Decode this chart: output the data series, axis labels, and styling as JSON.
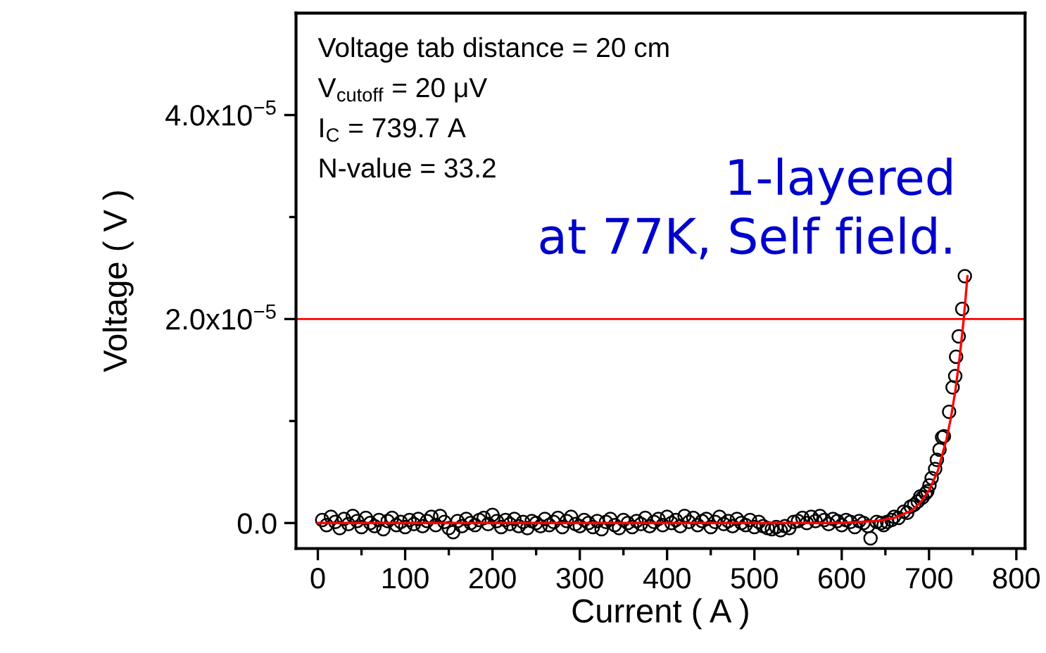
{
  "chart_data": {
    "type": "scatter",
    "xlabel": "Current ( A )",
    "ylabel": "Voltage ( V )",
    "xlim": [
      -25,
      810
    ],
    "ylim": [
      -2.5e-06,
      5e-05
    ],
    "xticks": [
      0,
      {
        "value": 50,
        "label": null
      },
      100,
      {
        "value": 150,
        "label": null
      },
      200,
      {
        "value": 250,
        "label": null
      },
      300,
      {
        "value": 350,
        "label": null
      },
      400,
      {
        "value": 450,
        "label": null
      },
      500,
      {
        "value": 550,
        "label": null
      },
      600,
      {
        "value": 650,
        "label": null
      },
      700,
      {
        "value": 750,
        "label": null
      },
      800
    ],
    "yticks": [
      {
        "value": 0,
        "label": "0.0"
      },
      {
        "value": 1e-05,
        "label": null
      },
      {
        "value": 2e-05,
        "label": "2.0x10$^{−5}$"
      },
      {
        "value": 3e-05,
        "label": null
      },
      {
        "value": 4e-05,
        "label": "4.0x10$^{−5}$"
      }
    ],
    "grid": false,
    "legend": false,
    "ref_lines": [
      {
        "axis": "y",
        "value": 2e-05,
        "color": "#ff0000"
      }
    ],
    "annotations": [
      "Voltage tab distance = 20 cm",
      "V$_{cutoff}$ = 20 μV",
      "I$_{C}$ = 739.7 A",
      "N-value = 33.2",
      "1-layered",
      "at 77K, Self field."
    ],
    "series": [
      {
        "color": "#000000",
        "marker": "circle",
        "x": [
          5,
          10,
          15,
          20,
          25,
          30,
          35,
          40,
          45,
          50,
          55,
          60,
          65,
          70,
          75,
          80,
          85,
          90,
          95,
          100,
          105,
          110,
          115,
          120,
          125,
          130,
          135,
          140,
          145,
          150,
          155,
          160,
          165,
          170,
          175,
          180,
          185,
          190,
          195,
          200,
          205,
          210,
          215,
          220,
          225,
          230,
          235,
          240,
          245,
          250,
          255,
          260,
          265,
          270,
          275,
          280,
          285,
          290,
          295,
          300,
          305,
          310,
          315,
          320,
          325,
          330,
          335,
          340,
          345,
          350,
          355,
          360,
          365,
          370,
          375,
          380,
          385,
          390,
          395,
          400,
          405,
          410,
          415,
          420,
          425,
          430,
          435,
          440,
          445,
          450,
          455,
          460,
          465,
          470,
          475,
          480,
          485,
          490,
          495,
          500,
          505,
          510,
          515,
          520,
          525,
          530,
          535,
          540,
          545,
          550,
          555,
          560,
          565,
          570,
          575,
          580,
          585,
          590,
          595,
          600,
          605,
          610,
          615,
          620,
          625,
          630,
          633,
          640,
          645,
          648,
          652,
          657,
          660,
          665,
          671,
          675,
          679,
          683,
          687,
          690,
          692.5,
          696,
          698,
          700.5,
          703,
          707,
          709,
          712,
          715,
          717,
          723,
          727,
          730,
          731,
          734,
          738,
          741
        ],
        "values": [
          3e-07,
          -2e-07,
          6e-07,
          1e-07,
          -5e-07,
          4e-07,
          -1e-07,
          7e-07,
          2e-07,
          -4e-07,
          5e-07,
          0,
          -3e-07,
          3e-07,
          -6e-07,
          2e-07,
          5e-07,
          -2e-07,
          1e-07,
          -4e-07,
          3e-07,
          -1e-07,
          4e-07,
          -3e-07,
          2e-07,
          6e-07,
          -2e-07,
          7e-07,
          1e-07,
          -5e-07,
          -9e-07,
          2e-07,
          -3e-07,
          4e-07,
          0,
          -2e-07,
          3e-07,
          5e-07,
          -1e-07,
          8e-07,
          2e-07,
          -4e-07,
          3e-07,
          -1e-07,
          4e-07,
          -3e-07,
          1e-07,
          -5e-07,
          2e-07,
          0,
          -3e-07,
          4e-07,
          -2e-07,
          1e-07,
          5e-07,
          -4e-07,
          2e-07,
          6e-07,
          -1e-07,
          -3e-07,
          3e-07,
          0,
          -4e-07,
          2e-07,
          -6e-07,
          1e-07,
          4e-07,
          -2e-07,
          -5e-07,
          3e-07,
          0,
          -4e-07,
          2e-07,
          -1e-07,
          5e-07,
          -3e-07,
          1e-07,
          4e-07,
          -2e-07,
          6e-07,
          0,
          3e-07,
          -3e-07,
          7e-07,
          1e-07,
          5e-07,
          -2e-07,
          2e-07,
          4e-07,
          -4e-07,
          1e-07,
          6e-07,
          -1e-07,
          2e-07,
          -3e-07,
          4e-07,
          0,
          -2e-07,
          3e-07,
          -4e-07,
          1e-07,
          -3e-07,
          -5e-07,
          -6e-07,
          -4e-07,
          -7e-07,
          -3e-07,
          -5e-07,
          1e-07,
          2e-07,
          5e-07,
          0,
          6e-07,
          2e-07,
          7e-07,
          3e-07,
          -1e-07,
          4e-07,
          2e-07,
          -2e-07,
          3e-07,
          1e-07,
          -4e-07,
          2e-07,
          0,
          -3e-07,
          -1.5e-06,
          1e-07,
          0,
          -2e-07,
          1e-07,
          3e-07,
          6e-07,
          5e-07,
          1.1e-06,
          1e-06,
          1.6e-06,
          1.8e-06,
          2.1e-06,
          2.6e-06,
          2.5e-06,
          2.9e-06,
          3.1e-06,
          3.7e-06,
          4.4e-06,
          5.3e-06,
          6.2e-06,
          7.2e-06,
          8.4e-06,
          8.5e-06,
          1.09e-05,
          1.33e-05,
          1.44e-05,
          1.63e-05,
          1.83e-05,
          2.1e-05,
          2.42e-05
        ]
      },
      {
        "type": "line",
        "color": "#ff0000",
        "marker": "none",
        "line_style": "solid",
        "x": [
          0,
          500,
          600,
          640,
          660,
          680,
          690,
          700,
          710,
          720,
          725,
          730,
          735,
          740,
          744
        ],
        "values": [
          0,
          0,
          0,
          2e-07,
          5e-07,
          1.2e-06,
          2e-06,
          3.2e-06,
          5.1e-06,
          8.2e-06,
          1.03e-05,
          1.29e-05,
          1.62e-05,
          2.02e-05,
          2.42e-05
        ]
      }
    ]
  }
}
